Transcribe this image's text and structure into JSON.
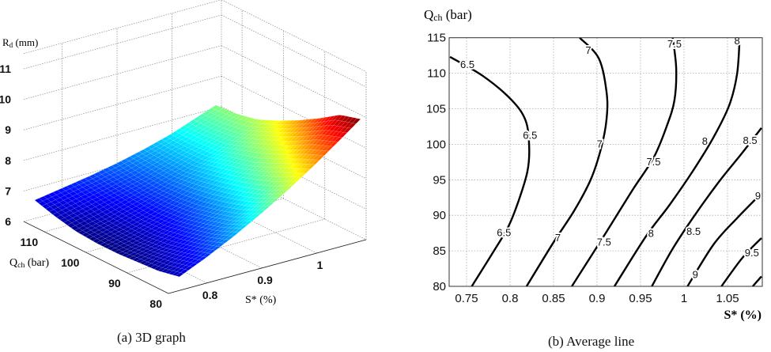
{
  "chart_data": [
    {
      "type": "surface",
      "caption": "(a)  3D graph",
      "xlabel": {
        "base": "S*",
        "rest": " (%)"
      },
      "ylabel": {
        "base": "Q",
        "sub": "ch",
        "rest": " (bar)"
      },
      "zlabel": {
        "base": "R",
        "sub": "d",
        "rest": " (mm)"
      },
      "xlim": [
        0.73,
        1.09
      ],
      "ylim": [
        80,
        115
      ],
      "zlim": [
        6,
        11.5
      ],
      "xticks": [
        0.8,
        0.9,
        1
      ],
      "xtick_labels": [
        "0.8",
        "0.9",
        "1"
      ],
      "yticks": [
        80,
        90,
        100,
        110
      ],
      "ytick_labels": [
        "80",
        "90",
        "100",
        "110"
      ],
      "zticks": [
        6,
        7,
        8,
        9,
        10,
        11
      ],
      "ztick_labels": [
        "6",
        "7",
        "8",
        "9",
        "10",
        "11"
      ],
      "grid": true,
      "colormap": "jet",
      "x": [
        0.75,
        0.8,
        0.85,
        0.9,
        0.95,
        1.0,
        1.05,
        1.08
      ],
      "y": [
        80,
        85,
        90,
        95,
        100,
        105,
        110,
        115
      ],
      "z": [
        [
          6.45,
          6.85,
          7.3,
          7.8,
          8.35,
          8.95,
          9.6,
          10.0
        ],
        [
          6.3,
          6.65,
          7.03,
          7.45,
          7.98,
          8.65,
          9.35,
          9.8
        ],
        [
          6.25,
          6.48,
          6.85,
          7.23,
          7.74,
          8.3,
          8.96,
          9.35
        ],
        [
          6.2,
          6.4,
          6.7,
          7.06,
          7.55,
          8.0,
          8.62,
          8.95
        ],
        [
          6.2,
          6.4,
          6.65,
          6.97,
          7.38,
          7.82,
          8.3,
          8.6
        ],
        [
          6.25,
          6.45,
          6.7,
          6.94,
          7.25,
          7.6,
          8.02,
          8.3
        ],
        [
          6.4,
          6.6,
          6.78,
          6.98,
          7.26,
          7.56,
          7.92,
          8.15
        ],
        [
          6.6,
          6.75,
          6.9,
          7.08,
          7.3,
          7.56,
          7.9,
          8.1
        ]
      ]
    },
    {
      "type": "contour",
      "caption": "(b) Average line",
      "xlabel": "S* (%)",
      "ylabel": {
        "base": "Q",
        "sub": "ch",
        "rest": " (bar)"
      },
      "xlim": [
        0.73,
        1.09
      ],
      "ylim": [
        80,
        115
      ],
      "xticks": [
        0.75,
        0.8,
        0.85,
        0.9,
        0.95,
        1,
        1.05
      ],
      "xtick_labels": [
        "0.75",
        "0.8",
        "0.85",
        "0.9",
        "0.95",
        "1",
        "1.05"
      ],
      "yticks": [
        80,
        85,
        90,
        95,
        100,
        105,
        110,
        115
      ],
      "ytick_labels": [
        "80",
        "85",
        "90",
        "95",
        "100",
        "105",
        "110",
        "115"
      ],
      "grid": true,
      "line_color": "#000000",
      "contours": [
        {
          "level": "6.5",
          "points": [
            [
              0.731,
              112.3
            ],
            [
              0.769,
              109.6
            ],
            [
              0.802,
              106.2
            ],
            [
              0.818,
              103.3
            ],
            [
              0.822,
              99.6
            ],
            [
              0.82,
              96.2
            ],
            [
              0.81,
              92.1
            ],
            [
              0.798,
              88.4
            ],
            [
              0.78,
              84.7
            ],
            [
              0.756,
              80
            ]
          ],
          "labels": [
            [
              0.751,
              111.2
            ],
            [
              0.823,
              101.2
            ],
            [
              0.793,
              87.5
            ]
          ]
        },
        {
          "level": "7",
          "points": [
            [
              0.88,
              115
            ],
            [
              0.902,
              112.1
            ],
            [
              0.911,
              107.3
            ],
            [
              0.911,
              103.6
            ],
            [
              0.905,
              99.6
            ],
            [
              0.893,
              95.1
            ],
            [
              0.874,
              90.7
            ],
            [
              0.85,
              86.2
            ],
            [
              0.819,
              80
            ]
          ],
          "labels": [
            [
              0.89,
              113.2
            ],
            [
              0.903,
              100.0
            ],
            [
              0.855,
              86.8
            ]
          ]
        },
        {
          "level": "7.5",
          "points": [
            [
              0.987,
              115
            ],
            [
              0.991,
              110.7
            ],
            [
              0.989,
              106.2
            ],
            [
              0.98,
              102.5
            ],
            [
              0.965,
              98.1
            ],
            [
              0.941,
              93.6
            ],
            [
              0.911,
              87.7
            ],
            [
              0.871,
              80
            ]
          ],
          "labels": [
            [
              0.989,
              114.1
            ],
            [
              0.965,
              97.5
            ],
            [
              0.908,
              86.2
            ]
          ]
        },
        {
          "level": "8",
          "points": [
            [
              1.064,
              115
            ],
            [
              1.061,
              109.9
            ],
            [
              1.052,
              105.5
            ],
            [
              1.034,
              101
            ],
            [
              1.01,
              96.2
            ],
            [
              0.983,
              91.4
            ],
            [
              0.956,
              87
            ],
            [
              0.92,
              80
            ]
          ],
          "labels": [
            [
              1.061,
              114.5
            ],
            [
              1.024,
              100.4
            ],
            [
              0.962,
              87.4
            ]
          ]
        },
        {
          "level": "8.5",
          "points": [
            [
              1.089,
              102.3
            ],
            [
              1.067,
              98.8
            ],
            [
              1.04,
              94.7
            ],
            [
              1.01,
              89.6
            ],
            [
              0.986,
              85.1
            ],
            [
              0.963,
              80
            ]
          ],
          "labels": [
            [
              1.076,
              100.5
            ],
            [
              1.011,
              87.7
            ]
          ]
        },
        {
          "level": "9",
          "points": [
            [
              1.089,
              93.1
            ],
            [
              1.061,
              89.6
            ],
            [
              1.034,
              85.9
            ],
            [
              1.004,
              80
            ]
          ],
          "labels": [
            [
              1.085,
              92.7
            ],
            [
              1.013,
              81.6
            ]
          ]
        },
        {
          "level": "9.5",
          "points": [
            [
              1.089,
              86.8
            ],
            [
              1.067,
              84
            ],
            [
              1.043,
              80
            ]
          ],
          "labels": [
            [
              1.078,
              84.7
            ]
          ]
        },
        {
          "level": "10",
          "points": [
            [
              1.089,
              81.4
            ],
            [
              1.079,
              80
            ]
          ],
          "labels": []
        }
      ]
    }
  ]
}
